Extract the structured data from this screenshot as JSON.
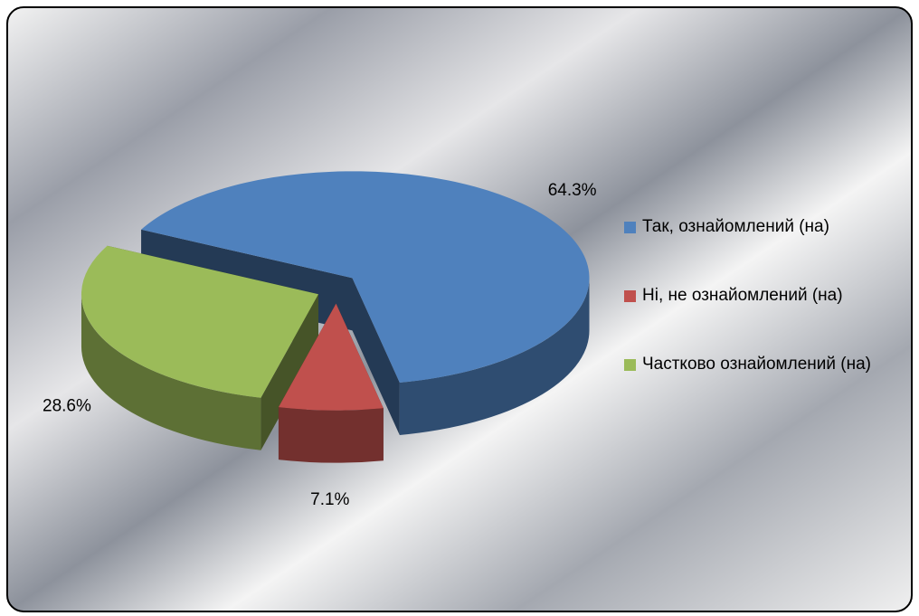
{
  "chart_data": {
    "type": "pie",
    "categories": [
      "Так, ознайомлений (на)",
      "Ні, не ознайомлений (на)",
      "Частково ознайомлений (на)"
    ],
    "values": [
      64.3,
      7.1,
      28.6
    ],
    "value_labels": [
      "64.3%",
      "7.1%",
      "28.6%"
    ],
    "colors": [
      "#4f81bd",
      "#c0504d",
      "#9bbb59"
    ],
    "legend": "right"
  }
}
